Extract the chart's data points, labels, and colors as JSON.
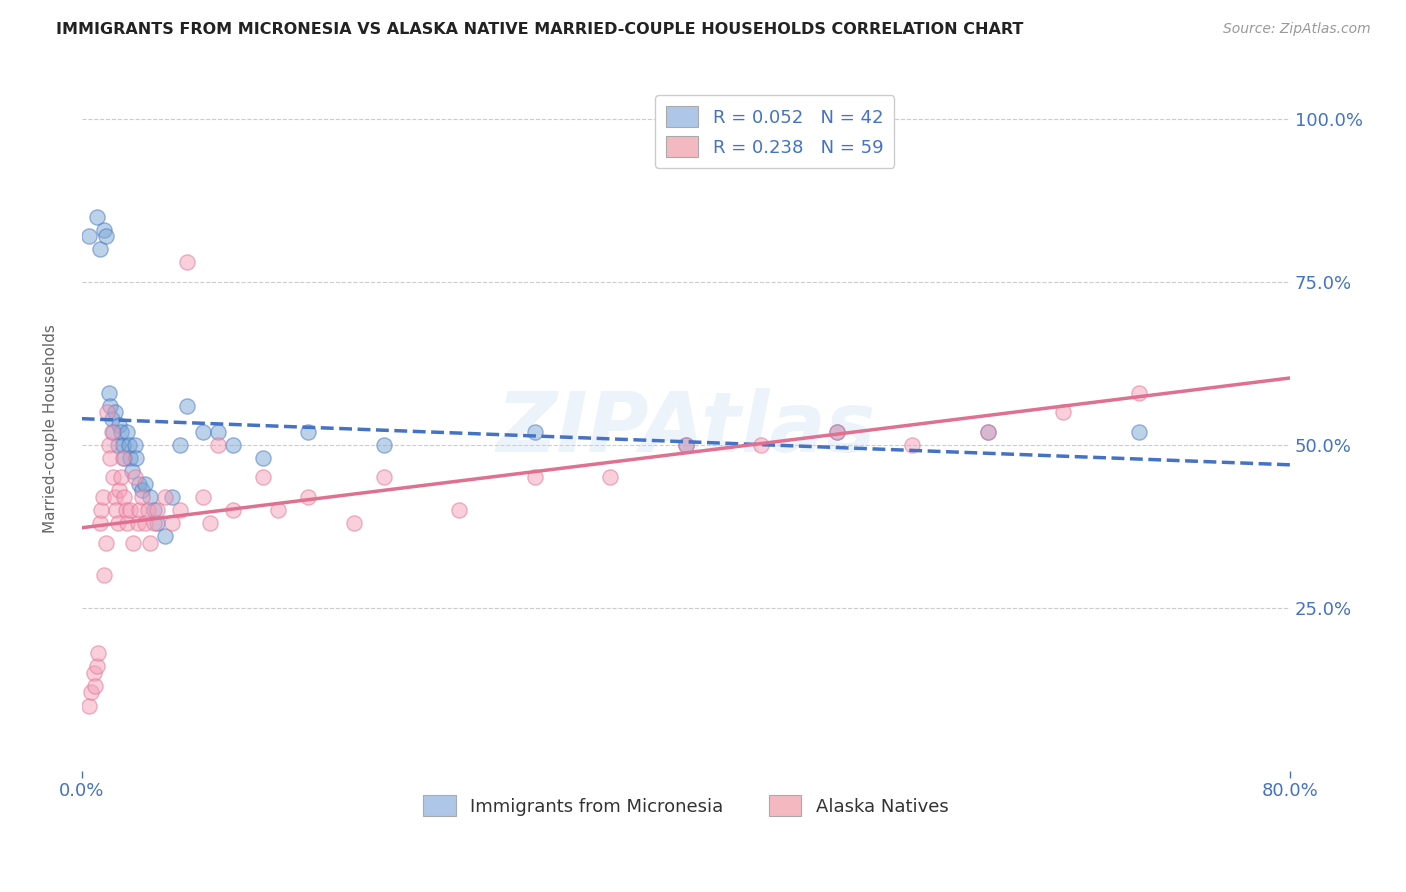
{
  "title": "IMMIGRANTS FROM MICRONESIA VS ALASKA NATIVE MARRIED-COUPLE HOUSEHOLDS CORRELATION CHART",
  "source_text": "Source: ZipAtlas.com",
  "ylabel": "Married-couple Households",
  "xlim": [
    0.0,
    0.8
  ],
  "ylim": [
    0.0,
    1.05
  ],
  "xtick_labels": [
    "0.0%",
    "80.0%"
  ],
  "ytick_labels": [
    "25.0%",
    "50.0%",
    "75.0%",
    "100.0%"
  ],
  "ytick_positions": [
    0.25,
    0.5,
    0.75,
    1.0
  ],
  "legend_entries": [
    {
      "label": "R = 0.052   N = 42",
      "color": "#aec6e8"
    },
    {
      "label": "R = 0.238   N = 59",
      "color": "#f4b8c1"
    }
  ],
  "legend_bottom": [
    "Immigrants from Micronesia",
    "Alaska Natives"
  ],
  "watermark_text": "ZIPAtlas",
  "blue_scatter_x": [
    0.005,
    0.01,
    0.012,
    0.015,
    0.016,
    0.018,
    0.019,
    0.02,
    0.021,
    0.022,
    0.024,
    0.025,
    0.026,
    0.027,
    0.028,
    0.03,
    0.031,
    0.032,
    0.033,
    0.035,
    0.036,
    0.038,
    0.04,
    0.042,
    0.045,
    0.048,
    0.05,
    0.055,
    0.06,
    0.065,
    0.07,
    0.08,
    0.09,
    0.1,
    0.12,
    0.15,
    0.2,
    0.3,
    0.4,
    0.5,
    0.6,
    0.7
  ],
  "blue_scatter_y": [
    0.82,
    0.85,
    0.8,
    0.83,
    0.82,
    0.58,
    0.56,
    0.54,
    0.52,
    0.55,
    0.5,
    0.53,
    0.52,
    0.5,
    0.48,
    0.52,
    0.5,
    0.48,
    0.46,
    0.5,
    0.48,
    0.44,
    0.43,
    0.44,
    0.42,
    0.4,
    0.38,
    0.36,
    0.42,
    0.5,
    0.56,
    0.52,
    0.52,
    0.5,
    0.48,
    0.52,
    0.5,
    0.52,
    0.5,
    0.52,
    0.52,
    0.52
  ],
  "pink_scatter_x": [
    0.005,
    0.006,
    0.008,
    0.009,
    0.01,
    0.011,
    0.012,
    0.013,
    0.014,
    0.015,
    0.016,
    0.017,
    0.018,
    0.019,
    0.02,
    0.021,
    0.022,
    0.023,
    0.024,
    0.025,
    0.026,
    0.027,
    0.028,
    0.029,
    0.03,
    0.032,
    0.034,
    0.035,
    0.037,
    0.038,
    0.04,
    0.042,
    0.044,
    0.045,
    0.048,
    0.05,
    0.055,
    0.06,
    0.065,
    0.07,
    0.08,
    0.085,
    0.09,
    0.1,
    0.12,
    0.13,
    0.15,
    0.18,
    0.2,
    0.25,
    0.3,
    0.35,
    0.4,
    0.45,
    0.5,
    0.55,
    0.6,
    0.65,
    0.7
  ],
  "pink_scatter_y": [
    0.1,
    0.12,
    0.15,
    0.13,
    0.16,
    0.18,
    0.38,
    0.4,
    0.42,
    0.3,
    0.35,
    0.55,
    0.5,
    0.48,
    0.52,
    0.45,
    0.42,
    0.4,
    0.38,
    0.43,
    0.45,
    0.48,
    0.42,
    0.4,
    0.38,
    0.4,
    0.35,
    0.45,
    0.38,
    0.4,
    0.42,
    0.38,
    0.4,
    0.35,
    0.38,
    0.4,
    0.42,
    0.38,
    0.4,
    0.78,
    0.42,
    0.38,
    0.5,
    0.4,
    0.45,
    0.4,
    0.42,
    0.38,
    0.45,
    0.4,
    0.45,
    0.45,
    0.5,
    0.5,
    0.52,
    0.5,
    0.52,
    0.55,
    0.58
  ],
  "blue_line_color": "#4472c4",
  "pink_line_color": "#e07090",
  "grid_color": "#cccccc",
  "background_color": "#ffffff",
  "title_color": "#222222",
  "axis_label_color": "#666666",
  "tick_label_color": "#4472c4"
}
